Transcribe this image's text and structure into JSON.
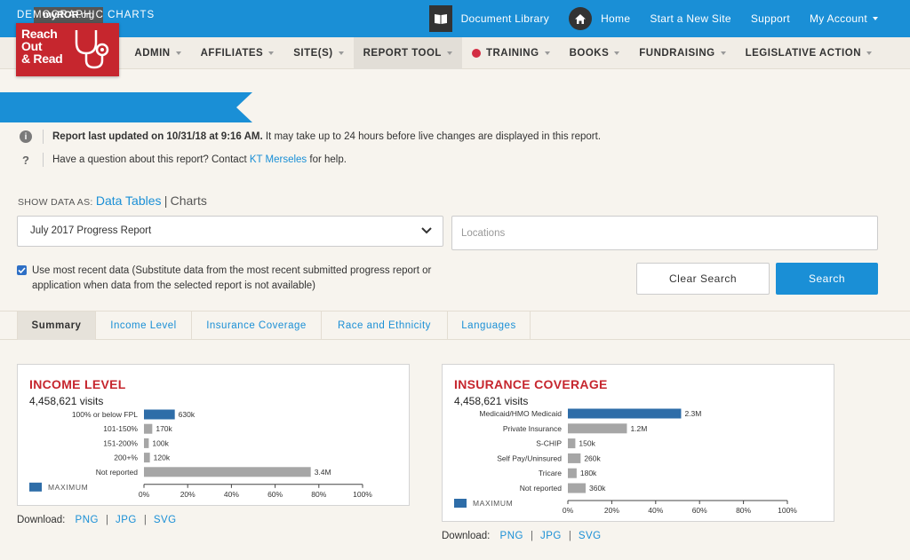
{
  "topnav": {
    "doc_library": "Document Library",
    "home": "Home",
    "new_site": "Start a New Site",
    "support": "Support",
    "account": "My Account"
  },
  "logo": {
    "site": "myROR",
    "site_suffix": ".org",
    "line1": "Reach",
    "line2": "Out",
    "line3": "& Read"
  },
  "mainnav": [
    "ADMIN",
    "AFFILIATES",
    "SITE(S)",
    "REPORT TOOL",
    "TRAINING",
    "BOOKS",
    "FUNDRAISING",
    "LEGISLATIVE ACTION"
  ],
  "banner": "DEMOGRAPHIC CHARTS",
  "info": {
    "updated_bold": "Report last updated on 10/31/18 at 9:16 AM.",
    "updated_rest": " It may take up to 24 hours before live changes are displayed in this report.",
    "question_pre": "Have a question about this report? Contact ",
    "contact": "KT Merseles",
    "question_post": " for help."
  },
  "showdata": {
    "label": "SHOW DATA AS:",
    "tables": "Data Tables",
    "divider": "|",
    "charts": "Charts"
  },
  "filters": {
    "report_selected": "July 2017 Progress Report",
    "locations_placeholder": "Locations",
    "checkbox_label": "Use most recent data (Substitute data from the most recent submitted progress report or application when data from the selected report is not available)",
    "clear": "Clear Search",
    "search": "Search"
  },
  "tabs": [
    "Summary",
    "Income Level",
    "Insurance Coverage",
    "Race and Ethnicity",
    "Languages"
  ],
  "colors": {
    "brand_blue": "#1a8fd6",
    "maximum_bar": "#2e6da8",
    "default_bar": "#a6a6a6",
    "title_red": "#c6262e"
  },
  "download": {
    "label": "Download:",
    "formats": [
      "PNG",
      "JPG",
      "SVG"
    ]
  },
  "chart_data": [
    {
      "type": "bar",
      "orientation": "horizontal",
      "title": "INCOME LEVEL",
      "subtitle": "4,458,621 visits",
      "categories": [
        "100% or below FPL",
        "101-150%",
        "151-200%",
        "200+%",
        "Not reported"
      ],
      "values": [
        14.1,
        3.8,
        2.2,
        2.7,
        76.3
      ],
      "value_labels": [
        "630k",
        "170k",
        "100k",
        "120k",
        "3.4M"
      ],
      "highlight_index": 0,
      "legend": "MAXIMUM",
      "xlim": [
        0,
        100
      ],
      "xticks": [
        "0%",
        "20%",
        "40%",
        "60%",
        "80%",
        "100%"
      ]
    },
    {
      "type": "bar",
      "orientation": "horizontal",
      "title": "INSURANCE COVERAGE",
      "subtitle": "4,458,621 visits",
      "categories": [
        "Medicaid/HMO Medicaid",
        "Private Insurance",
        "S-CHIP",
        "Self Pay/Uninsured",
        "Tricare",
        "Not reported"
      ],
      "values": [
        51.6,
        26.9,
        3.4,
        5.8,
        4.0,
        8.1
      ],
      "value_labels": [
        "2.3M",
        "1.2M",
        "150k",
        "260k",
        "180k",
        "360k"
      ],
      "highlight_index": 0,
      "legend": "MAXIMUM",
      "xlim": [
        0,
        100
      ],
      "xticks": [
        "0%",
        "20%",
        "40%",
        "60%",
        "80%",
        "100%"
      ]
    }
  ]
}
